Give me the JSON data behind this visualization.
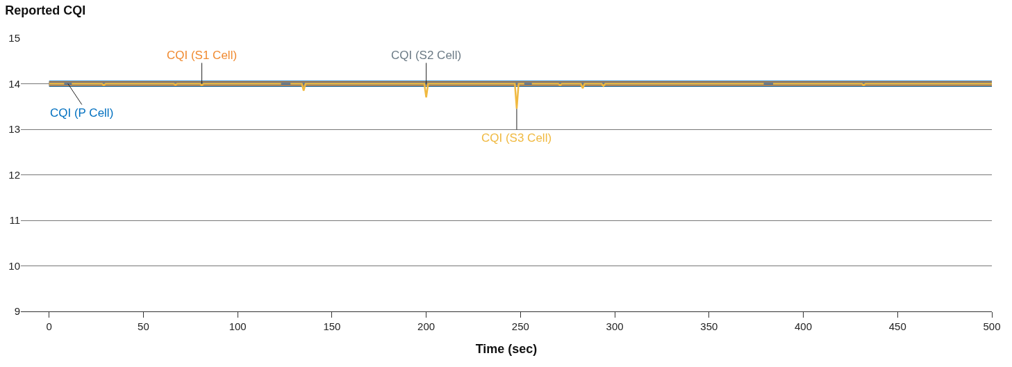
{
  "chart_data": {
    "type": "line",
    "title": "Reported CQI",
    "xlabel": "Time (sec)",
    "xlim": [
      -15,
      500
    ],
    "xticks": [
      0,
      50,
      100,
      150,
      200,
      250,
      300,
      350,
      400,
      450,
      500
    ],
    "ylim": [
      9,
      15
    ],
    "yticks": [
      9,
      10,
      11,
      12,
      13,
      14,
      15
    ],
    "grid": "y",
    "legend": false,
    "marker": "none",
    "line_style": "solid",
    "series": [
      {
        "color": "#0070c0",
        "x": [
          0,
          500
        ],
        "values": [
          14,
          14
        ]
      },
      {
        "color": "#f08a30",
        "x": [
          0,
          500
        ],
        "values": [
          14,
          14
        ]
      },
      {
        "color": "#6b7a85",
        "x": [
          0,
          200,
          500
        ],
        "values": [
          14,
          14,
          14
        ]
      },
      {
        "color": "#f0b940",
        "x": [
          0,
          8,
          9,
          11,
          12,
          28,
          29,
          30,
          66,
          67,
          68,
          80,
          81,
          82,
          123,
          124,
          127,
          128,
          134,
          135,
          136,
          199,
          200,
          201,
          247,
          248,
          249,
          252,
          253,
          255,
          256,
          270,
          271,
          272,
          282,
          283,
          284,
          293,
          294,
          295,
          379,
          380,
          383,
          384,
          431,
          432,
          433,
          500
        ],
        "values": [
          14,
          14,
          null,
          null,
          14,
          14,
          13.97,
          14,
          14,
          13.98,
          14,
          14,
          13.97,
          14,
          14,
          null,
          null,
          14,
          14,
          13.85,
          14,
          14,
          13.7,
          14,
          14,
          13.45,
          14,
          14,
          null,
          null,
          14,
          14,
          13.97,
          14,
          14,
          13.9,
          14,
          14,
          13.95,
          14,
          14,
          null,
          null,
          14,
          14,
          13.97,
          14,
          14
        ]
      }
    ],
    "annotations": [
      {
        "text": "CQI (P Cell)",
        "x": 10,
        "y": 14
      },
      {
        "text": "CQI (S1 Cell)",
        "x": 81,
        "y": 14
      },
      {
        "text": "CQI (S2 Cell)",
        "x": 200,
        "y": 14
      },
      {
        "text": "CQI (S3 Cell)",
        "x": 248,
        "y": 13.45
      }
    ]
  }
}
